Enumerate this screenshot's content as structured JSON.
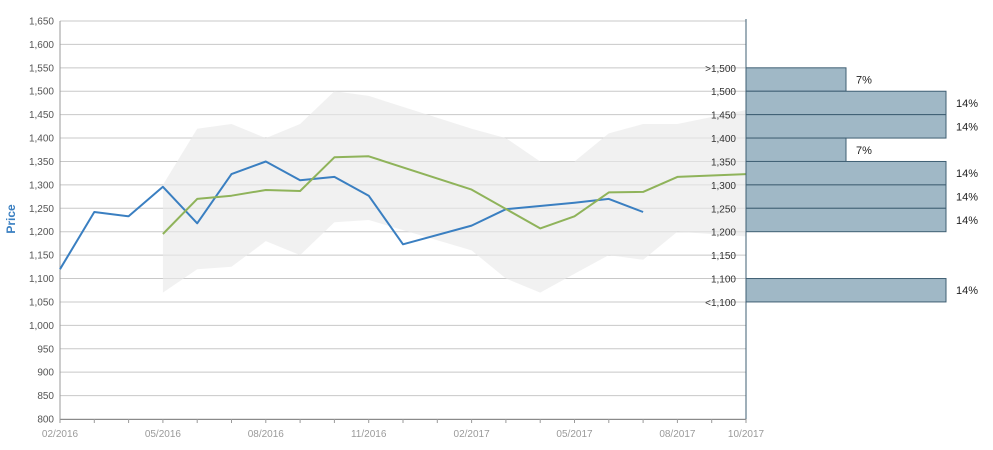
{
  "chart_data": {
    "type": "line",
    "ylabel": "Price",
    "xlabel": "",
    "title": "",
    "ylim": [
      800,
      1650
    ],
    "yticks": [
      800,
      850,
      900,
      950,
      1000,
      1050,
      1100,
      1150,
      1200,
      1250,
      1300,
      1350,
      1400,
      1450,
      1500,
      1550,
      1600,
      1650
    ],
    "ytick_labels": [
      "800",
      "850",
      "900",
      "950",
      "1,000",
      "1,050",
      "1,100",
      "1,150",
      "1,200",
      "1,250",
      "1,300",
      "1,350",
      "1,400",
      "1,450",
      "1,500",
      "1,550",
      "1,600",
      "1,650"
    ],
    "xticks": [
      "02/2016",
      "05/2016",
      "08/2016",
      "11/2016",
      "02/2017",
      "05/2017",
      "08/2017",
      "10/2017"
    ],
    "grid": true,
    "colors": {
      "blue": "#3a7fc1",
      "green": "#8fb35a",
      "band": "#e9e9e9",
      "bar_fill": "#a0b8c6",
      "bar_stroke": "#3f5f73"
    },
    "series": [
      {
        "x": [
          "2016-02",
          "2016-03",
          "2016-04",
          "2016-05",
          "2016-06",
          "2016-07",
          "2016-08",
          "2016-09",
          "2016-10",
          "2016-11",
          "2016-12",
          "2017-02",
          "2017-03",
          "2017-05",
          "2017-06",
          "2017-07"
        ],
        "values": [
          1120,
          1242,
          1233,
          1296,
          1218,
          1323,
          1350,
          1310,
          1317,
          1277,
          1173,
          1213,
          1248,
          1262,
          1270,
          1242
        ]
      },
      {
        "x": [
          "2016-05",
          "2016-06",
          "2016-07",
          "2016-08",
          "2016-09",
          "2016-10",
          "2016-11",
          "2017-02",
          "2017-04",
          "2017-05",
          "2017-06",
          "2017-07",
          "2017-08",
          "2017-10"
        ],
        "values": [
          1195,
          1270,
          1277,
          1289,
          1287,
          1359,
          1361,
          1290,
          1207,
          1233,
          1284,
          1285,
          1317,
          1323
        ]
      }
    ],
    "band": {
      "x": [
        "2016-05",
        "2016-06",
        "2016-07",
        "2016-08",
        "2016-09",
        "2016-10",
        "2016-11",
        "2017-02",
        "2017-03",
        "2017-04",
        "2017-05",
        "2017-06",
        "2017-07",
        "2017-08",
        "2017-10"
      ],
      "upper": [
        1300,
        1420,
        1430,
        1400,
        1430,
        1500,
        1490,
        1420,
        1400,
        1350,
        1350,
        1410,
        1430,
        1430,
        1460
      ],
      "lower": [
        1070,
        1120,
        1125,
        1180,
        1150,
        1220,
        1225,
        1160,
        1100,
        1070,
        1110,
        1150,
        1140,
        1200,
        1190
      ]
    },
    "distribution": [
      {
        "label": ">1,500",
        "from": 1500,
        "to": 1550,
        "percent": "7%",
        "share": 7
      },
      {
        "label": "1,500",
        "from": 1450,
        "to": 1500,
        "percent": "14%",
        "share": 14
      },
      {
        "label": "1,450",
        "from": 1400,
        "to": 1450,
        "percent": "14%",
        "share": 14
      },
      {
        "label": "1,400",
        "from": 1350,
        "to": 1400,
        "percent": "7%",
        "share": 7
      },
      {
        "label": "1,350",
        "from": 1300,
        "to": 1350,
        "percent": "14%",
        "share": 14
      },
      {
        "label": "1,300",
        "from": 1250,
        "to": 1300,
        "percent": "14%",
        "share": 14
      },
      {
        "label": "1,250",
        "from": 1200,
        "to": 1250,
        "percent": "14%",
        "share": 14
      },
      {
        "label": "1,200",
        "from": 1150,
        "to": 1200,
        "percent": "",
        "share": 0
      },
      {
        "label": "1,150",
        "from": 1100,
        "to": 1150,
        "percent": "",
        "share": 0
      },
      {
        "label": "1,100",
        "from": 1050,
        "to": 1100,
        "percent": "14%",
        "share": 14
      },
      {
        "label": "<1,100",
        "from": 1050,
        "to": 1050,
        "percent": "",
        "share": 0
      }
    ]
  }
}
